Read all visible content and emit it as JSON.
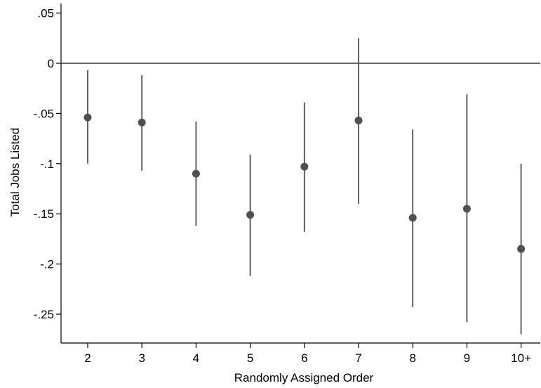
{
  "chart_data": {
    "type": "scatter",
    "xlabel": "Randomly Assigned Order",
    "ylabel": "Total Jobs Listed",
    "categories": [
      "2",
      "3",
      "4",
      "5",
      "6",
      "7",
      "8",
      "9",
      "10+"
    ],
    "estimates": [
      -0.054,
      -0.059,
      -0.11,
      -0.151,
      -0.103,
      -0.057,
      -0.154,
      -0.145,
      -0.185
    ],
    "ci_low": [
      -0.1,
      -0.107,
      -0.162,
      -0.212,
      -0.168,
      -0.14,
      -0.243,
      -0.258,
      -0.27
    ],
    "ci_high": [
      -0.007,
      -0.012,
      -0.058,
      -0.091,
      -0.039,
      0.025,
      -0.066,
      -0.031,
      -0.1
    ],
    "ylim": [
      -0.28,
      0.055
    ],
    "yticks": [
      0.05,
      0,
      -0.05,
      -0.1,
      -0.15,
      -0.2,
      -0.25
    ],
    "ytick_labels": [
      ".05",
      "0",
      "-.05",
      "-.1",
      "-.15",
      "-.2",
      "-.25"
    ],
    "reference_line": 0,
    "grid": false,
    "colors": {
      "marker": "#505050",
      "whisker": "#505050",
      "axis": "#000000",
      "reference_line": "#333333"
    }
  }
}
